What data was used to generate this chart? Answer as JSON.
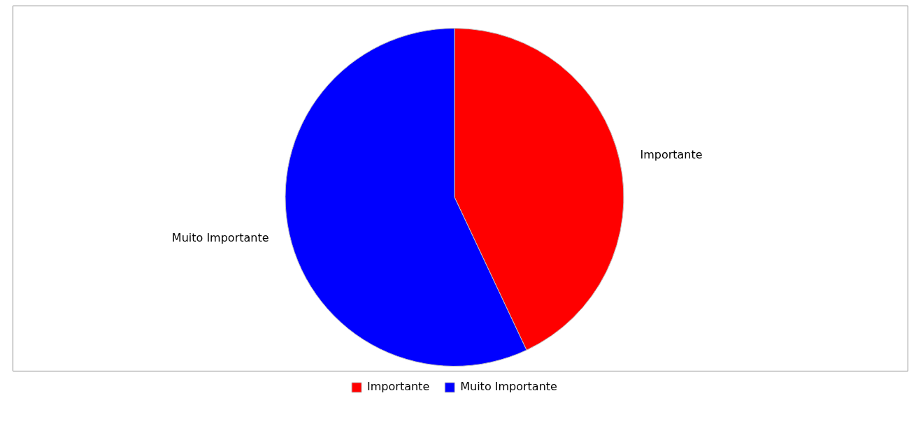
{
  "chart_data": {
    "type": "pie",
    "categories": [
      "Importante",
      "Muito Importante"
    ],
    "values": [
      43,
      57
    ],
    "colors": [
      "#ff0000",
      "#0000ff"
    ],
    "legend": "bottom"
  }
}
